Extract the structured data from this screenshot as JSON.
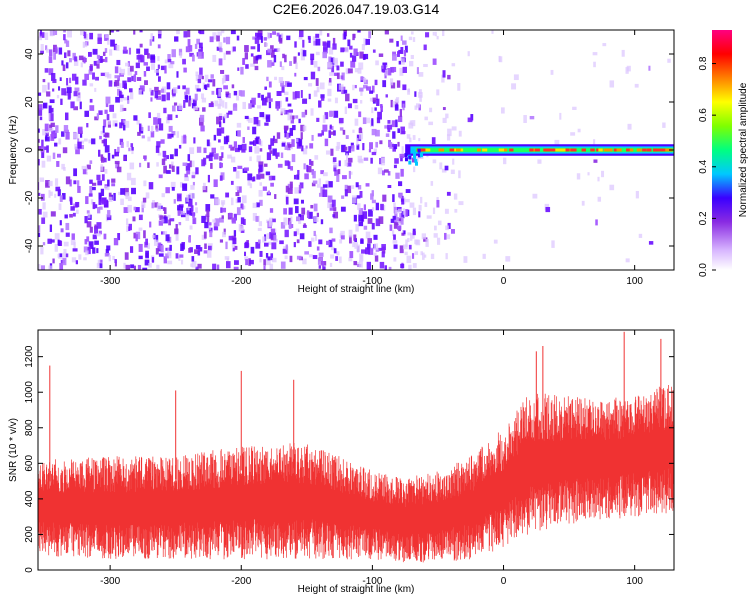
{
  "title": "C2E6.2026.047.19.03.G14",
  "chart_data": [
    {
      "type": "heatmap",
      "xlabel": "Height of straight line (km)",
      "ylabel": "Frequency (Hz)",
      "xlim": [
        -355,
        130
      ],
      "ylim": [
        -50,
        50
      ],
      "xticks": [
        -300,
        -200,
        -100,
        0,
        100
      ],
      "xtick_labels": [
        "-300",
        "-200",
        "-100",
        "0",
        "100"
      ],
      "yticks": [
        -40,
        -20,
        0,
        20,
        40
      ],
      "ytick_labels": [
        "-40",
        "-20",
        "0",
        "20",
        "40"
      ],
      "colorbar": {
        "label": "Normalized spectral amplitude",
        "range": [
          0,
          0.93
        ],
        "ticks": [
          0,
          0.2,
          0.4,
          0.6,
          0.8
        ],
        "tick_labels": [
          "0.0",
          "0.2",
          "0.4",
          "0.6",
          "0.8"
        ],
        "colormap": [
          "#ffffff",
          "#d9b8ff",
          "#8a2be2",
          "#3a00ff",
          "#00c8ff",
          "#00ff80",
          "#7fff00",
          "#ffff00",
          "#ff8000",
          "#ff0000",
          "#ff0080"
        ]
      },
      "features": {
        "noise_region": [
          -355,
          -75
        ],
        "signal_band_start": -75,
        "signal_band_center_hz": 0,
        "signal_band_halfwidth_hz": 2.5
      }
    },
    {
      "type": "line",
      "xlabel": "Height of straight line (km)",
      "ylabel": "SNR (10 * v/v)",
      "xlim": [
        -355,
        130
      ],
      "ylim": [
        0,
        1350
      ],
      "xticks": [
        -300,
        -200,
        -100,
        0,
        100
      ],
      "xtick_labels": [
        "-300",
        "-200",
        "-100",
        "0",
        "100"
      ],
      "yticks": [
        0,
        200,
        400,
        600,
        800,
        1000,
        1200
      ],
      "ytick_labels": [
        "0",
        "200",
        "400",
        "600",
        "800",
        "1000",
        "1200"
      ],
      "series": [
        {
          "name": "SNR",
          "color": "#f03232",
          "envelope_x": [
            -355,
            -300,
            -250,
            -200,
            -150,
            -100,
            -75,
            -50,
            -25,
            0,
            20,
            50,
            80,
            100,
            130
          ],
          "envelope_low": [
            80,
            60,
            60,
            60,
            60,
            60,
            40,
            40,
            60,
            120,
            200,
            260,
            280,
            300,
            320
          ],
          "envelope_high": [
            620,
            640,
            640,
            700,
            720,
            560,
            520,
            560,
            640,
            800,
            1000,
            980,
            960,
            1000,
            1050
          ],
          "peak_x": [
            -346,
            -250,
            -200,
            -160,
            25,
            30,
            92,
            120
          ],
          "peak_y": [
            1150,
            1010,
            1120,
            1070,
            1230,
            1260,
            1340,
            1300
          ]
        }
      ]
    }
  ]
}
